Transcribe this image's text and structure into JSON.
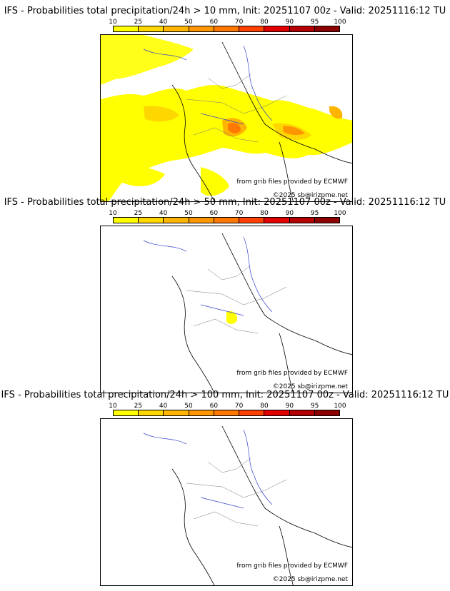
{
  "colorbar": {
    "ticks": [
      "10",
      "25",
      "40",
      "50",
      "60",
      "70",
      "80",
      "90",
      "95",
      "100"
    ],
    "colors": [
      "#ffff00",
      "#ffd700",
      "#ffb400",
      "#ff9600",
      "#ff7800",
      "#ff4000",
      "#e00000",
      "#b40000",
      "#8b0000"
    ]
  },
  "credits": {
    "source": "from grib files provided by ECMWF",
    "copyright": "©2025 sb@irizpme.net"
  },
  "panels": [
    {
      "title": "IFS - Probabilities total precipitation/24h > 10 mm, Init: 20251107 00z - Valid: 20251116:12 TU"
    },
    {
      "title": "IFS - Probabilities total precipitation/24h > 50 mm, Init: 20251107 00z - Valid: 20251116:12 TU"
    },
    {
      "title": "IFS - Probabilities total precipitation/24h > 100 mm, Init: 20251107 00z - Valid: 20251116:12 TU"
    }
  ]
}
